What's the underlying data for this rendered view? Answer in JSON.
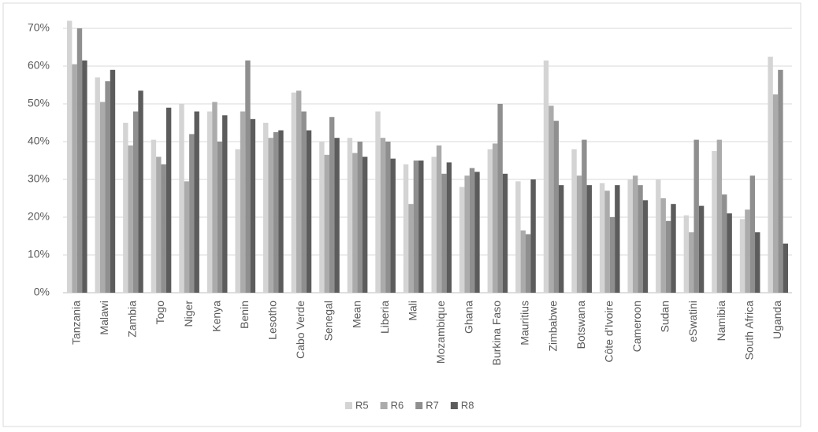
{
  "chart_data": {
    "type": "bar",
    "categories": [
      "Tanzania",
      "Malawi",
      "Zambia",
      "Togo",
      "Niger",
      "Kenya",
      "Benin",
      "Lesotho",
      "Cabo Verde",
      "Senegal",
      "Mean",
      "Liberia",
      "Mali",
      "Mozambique",
      "Ghana",
      "Burkina Faso",
      "Mauritius",
      "Zimbabwe",
      "Botswana",
      "Côte d’Ivoire",
      "Cameroon",
      "Sudan",
      "eSwatini",
      "Namibia",
      "South Africa",
      "Uganda"
    ],
    "series": [
      {
        "name": "R5",
        "color": "#d4d4d4",
        "values": [
          72,
          57,
          45,
          40.5,
          50,
          48,
          38,
          45,
          53,
          40,
          41,
          48,
          34,
          36,
          28,
          38,
          29.5,
          61.5,
          38,
          29,
          30,
          30,
          20.5,
          37.5,
          19.5,
          62.5
        ]
      },
      {
        "name": "R6",
        "color": "#ababab",
        "values": [
          60.5,
          50.5,
          39,
          36,
          29.5,
          50.5,
          48,
          41,
          53.5,
          36.5,
          37,
          41,
          23.5,
          39,
          31,
          39.5,
          16.5,
          49.5,
          31,
          27,
          31,
          25,
          16,
          40.5,
          22,
          52.5
        ]
      },
      {
        "name": "R7",
        "color": "#8f8f8f",
        "values": [
          70,
          56,
          48,
          34,
          42,
          40,
          61.5,
          42.5,
          48,
          46.5,
          40,
          40,
          35,
          31.5,
          33,
          50,
          15.5,
          45.5,
          40.5,
          20,
          28.5,
          19,
          40.5,
          26,
          31,
          59
        ]
      },
      {
        "name": "R8",
        "color": "#5c5c5c",
        "values": [
          61.5,
          59,
          53.5,
          49,
          48,
          47,
          46,
          43,
          43,
          41,
          36,
          35.5,
          35,
          34.5,
          32,
          31.5,
          30,
          28.5,
          28.5,
          28.5,
          24.5,
          23.5,
          23,
          21,
          16,
          13
        ]
      }
    ],
    "ylim": [
      0,
      70
    ],
    "yticks": [
      {
        "value": 0,
        "label": "0%"
      },
      {
        "value": 10,
        "label": "10%"
      },
      {
        "value": 20,
        "label": "20%"
      },
      {
        "value": 30,
        "label": "30%"
      },
      {
        "value": 40,
        "label": "40%"
      },
      {
        "value": 50,
        "label": "50%"
      },
      {
        "value": 60,
        "label": "60%"
      },
      {
        "value": 70,
        "label": "70%"
      }
    ],
    "grid": true,
    "legend": "bottom"
  }
}
